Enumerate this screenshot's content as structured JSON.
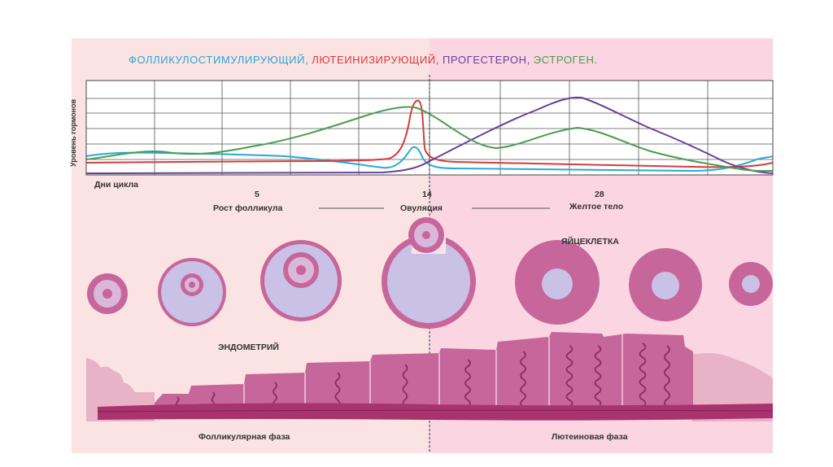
{
  "title": {
    "fsh": "ФОЛЛИКУЛОСТИМУЛИРУЮЩИЙ,",
    "lh": "ЛЮТЕИНИЗИРУЮЩИЙ,",
    "progesterone": "ПРОГЕСТЕРОН,",
    "estrogen": "ЭСТРОГЕН."
  },
  "colors": {
    "fsh": "#27a9d6",
    "lh": "#d83b3b",
    "progesterone": "#6a3f9a",
    "estrogen": "#4a9d4f",
    "follicular_bg": "#fbe3e3",
    "luteal_bg": "#fbd5e2",
    "tissue": "#c6669a",
    "tissue_dark": "#8a2b62"
  },
  "chart_data": {
    "type": "line",
    "ylabel": "Уровень гормонов",
    "xlabel": "Дни цикла",
    "x_ticks": [
      "5",
      "14",
      "28"
    ],
    "series": [
      {
        "name": "ФОЛЛИКУЛОСТИМУЛИРУЮЩИЙ",
        "color_key": "fsh"
      },
      {
        "name": "ЛЮТЕИНИЗИРУЮЩИЙ",
        "color_key": "lh"
      },
      {
        "name": "ПРОГЕСТЕРОН",
        "color_key": "progesterone"
      },
      {
        "name": "ЭСТРОГЕН",
        "color_key": "estrogen"
      }
    ]
  },
  "axis_labels": {
    "ylabel": "Уровень гормонов",
    "xlabel": "Дни цикла",
    "day5": "5",
    "day14": "14",
    "day28": "28"
  },
  "phases": {
    "follicle_growth": "Рост фолликула",
    "ovulation": "Овуляция",
    "corpus_luteum": "Желтое тело",
    "follicular": "Фолликулярная фаза",
    "luteal": "Лютеиновая фаза"
  },
  "labels": {
    "oocyte": "ЯЙЦЕКЛЕТКА",
    "endometrium": "ЭНДОМЕТРИЙ"
  }
}
